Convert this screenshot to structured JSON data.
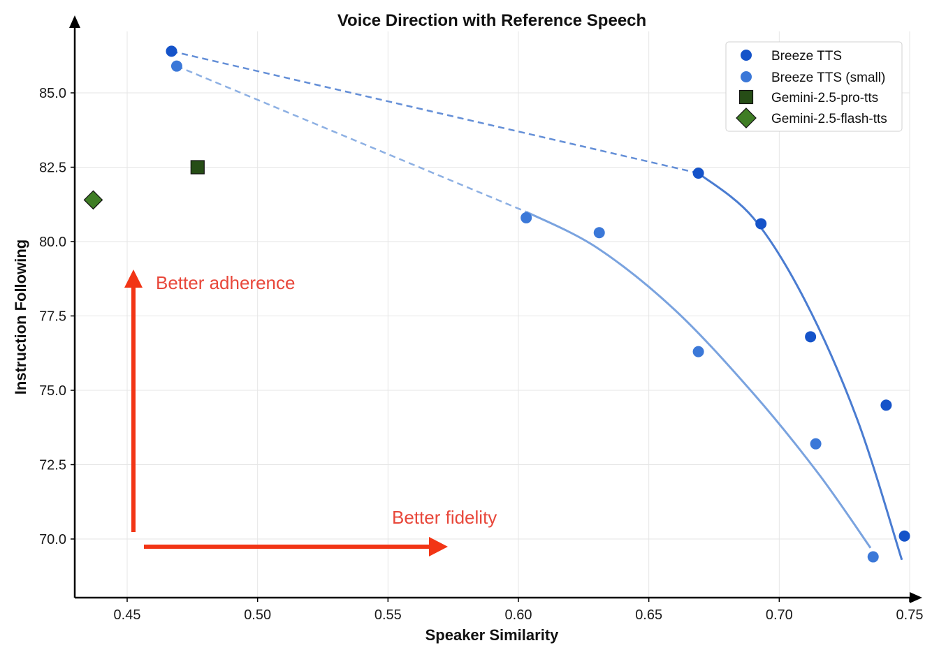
{
  "chart_data": {
    "type": "scatter",
    "title": "Voice Direction with Reference Speech",
    "xlabel": "Speaker Similarity",
    "ylabel": "Instruction Following",
    "xlim": [
      0.43,
      0.75
    ],
    "ylim": [
      68.0,
      87.0
    ],
    "xticks": [
      0.45,
      0.5,
      0.55,
      0.6,
      0.65,
      0.7,
      0.75
    ],
    "xtick_labels": [
      "0.45",
      "0.50",
      "0.55",
      "0.60",
      "0.65",
      "0.70",
      "0.75"
    ],
    "yticks": [
      70.0,
      72.5,
      75.0,
      77.5,
      80.0,
      82.5,
      85.0
    ],
    "ytick_labels": [
      "70.0",
      "72.5",
      "75.0",
      "77.5",
      "80.0",
      "82.5",
      "85.0"
    ],
    "grid": true,
    "legend_position": "top-right",
    "series": [
      {
        "name": "Breeze TTS",
        "marker": "circle",
        "color": "#1553c9",
        "line_color": "#4a7cd1",
        "points": [
          {
            "x": 0.467,
            "y": 86.4
          },
          {
            "x": 0.669,
            "y": 82.3
          },
          {
            "x": 0.693,
            "y": 80.6
          },
          {
            "x": 0.712,
            "y": 76.8
          },
          {
            "x": 0.741,
            "y": 74.5
          },
          {
            "x": 0.748,
            "y": 70.1
          }
        ],
        "dashed_segment": [
          {
            "x": 0.467,
            "y": 86.4
          },
          {
            "x": 0.669,
            "y": 82.3
          }
        ],
        "fit_curve": [
          {
            "x": 0.669,
            "y": 82.3
          },
          {
            "x": 0.69,
            "y": 80.8
          },
          {
            "x": 0.71,
            "y": 78.0
          },
          {
            "x": 0.73,
            "y": 74.0
          },
          {
            "x": 0.747,
            "y": 69.3
          }
        ]
      },
      {
        "name": "Breeze TTS (small)",
        "marker": "circle",
        "color": "#3b78d8",
        "line_color": "#7aa3df",
        "points": [
          {
            "x": 0.469,
            "y": 85.9
          },
          {
            "x": 0.603,
            "y": 80.8
          },
          {
            "x": 0.631,
            "y": 80.3
          },
          {
            "x": 0.669,
            "y": 76.3
          },
          {
            "x": 0.714,
            "y": 73.2
          },
          {
            "x": 0.736,
            "y": 69.4
          }
        ],
        "dashed_segment": [
          {
            "x": 0.469,
            "y": 85.9
          },
          {
            "x": 0.603,
            "y": 81.0
          }
        ],
        "fit_curve": [
          {
            "x": 0.603,
            "y": 81.0
          },
          {
            "x": 0.63,
            "y": 79.8
          },
          {
            "x": 0.66,
            "y": 77.7
          },
          {
            "x": 0.69,
            "y": 74.9
          },
          {
            "x": 0.715,
            "y": 72.2
          },
          {
            "x": 0.735,
            "y": 69.7
          }
        ]
      },
      {
        "name": "Gemini-2.5-pro-tts",
        "marker": "square",
        "color": "#264d16",
        "points": [
          {
            "x": 0.477,
            "y": 82.5
          }
        ]
      },
      {
        "name": "Gemini-2.5-flash-tts",
        "marker": "diamond",
        "color": "#3f7d25",
        "points": [
          {
            "x": 0.437,
            "y": 81.4
          }
        ]
      }
    ],
    "annotations": [
      {
        "text": "Better adherence",
        "color": "#e8473a",
        "direction": "up"
      },
      {
        "text": "Better fidelity",
        "color": "#e8473a",
        "direction": "right"
      }
    ],
    "arrow_color": "#f23515"
  }
}
